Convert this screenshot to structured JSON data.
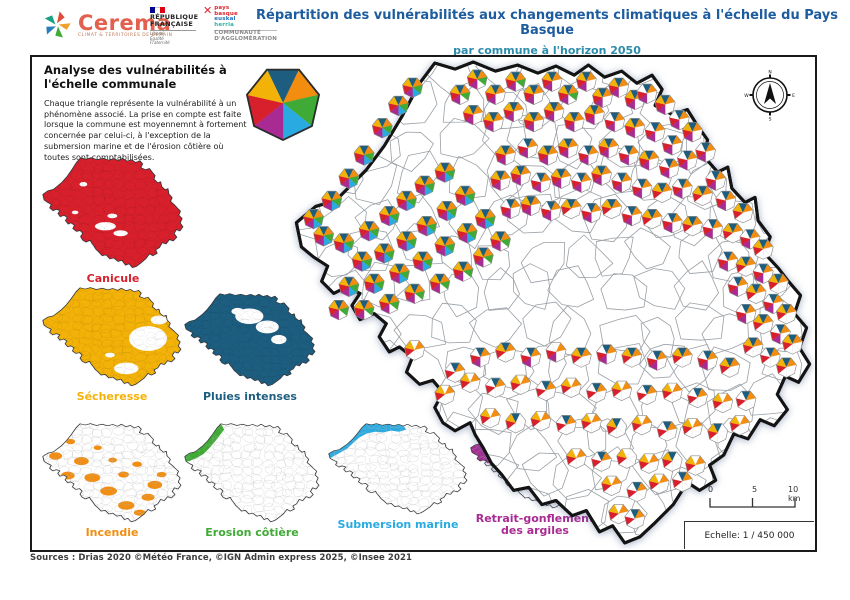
{
  "header": {
    "cerema": {
      "name": "Cerema",
      "tagline": "CLIMAT & TERRITOIRES DE DEMAIN"
    },
    "republique": {
      "line1": "RÉPUBLIQUE",
      "line2": "FRANÇAISE",
      "motto": "Liberté\nÉgalité\nFraternité"
    },
    "pays_basque": {
      "mark": "✕",
      "line1": "pays",
      "line2": "basque",
      "line3": "euskal",
      "line4": "herria",
      "sub": "COMMUNAUTÉ\nD'AGGLOMÉRATION"
    },
    "title": "Répartition des vulnérabilités aux changements climatiques à l'échelle du Pays Basque",
    "subtitle": "par commune à l'horizon 2050",
    "title_color": "#1d5c9e",
    "subtitle_color": "#2b8cab"
  },
  "panel": {
    "heading": "Analyse des vulnérabilités à l'échelle communale",
    "body": "Chaque triangle représente la vulnérabilité à un phénomène associé. La prise en compte est faite lorsque la commune est moyennemnt à fortement concernée par celui-ci, à l'exception de la submersion marine et de l'érosion côtière où toutes sont comptabilisées."
  },
  "phenomena": [
    {
      "id": "canicule",
      "label": "Canicule",
      "color": "#d8202c"
    },
    {
      "id": "secheresse",
      "label": "Sécheresse",
      "color": "#f3b208"
    },
    {
      "id": "pluies",
      "label": "Pluies intenses",
      "color": "#1d5e80"
    },
    {
      "id": "incendie",
      "label": "Incendie",
      "color": "#f28d0f"
    },
    {
      "id": "erosion",
      "label": "Erosion côtière",
      "color": "#3faa35"
    },
    {
      "id": "submersion",
      "label": "Submersion marine",
      "color": "#29abe2"
    },
    {
      "id": "retrait",
      "label": "Retrait-gonflement\ndes argiles",
      "color": "#a82a92"
    }
  ],
  "wedge_order": [
    "pluies",
    "incendie",
    "erosion",
    "submersion",
    "retrait",
    "canicule",
    "secheresse"
  ],
  "compass": {
    "north": "N",
    "east": "E",
    "south": "S",
    "west": "W"
  },
  "scalebar": {
    "t0": "0",
    "t5": "5",
    "t10": "10 km",
    "echelle": "Echelle: 1 / 450 000"
  },
  "sources": "Sources : Drias 2020 ©Météo France, ©IGN Admin express 2025, ©Insee 2021",
  "map": {
    "pies": [
      [
        118,
        28,
        "1111111"
      ],
      [
        104,
        46,
        "1111111"
      ],
      [
        88,
        68,
        "1111111"
      ],
      [
        70,
        95,
        "1111111"
      ],
      [
        55,
        118,
        "1111111"
      ],
      [
        38,
        140,
        "1111111"
      ],
      [
        20,
        158,
        "1111111"
      ],
      [
        30,
        175,
        "1111111"
      ],
      [
        50,
        182,
        "1111111"
      ],
      [
        75,
        170,
        "1111111"
      ],
      [
        95,
        155,
        "1111111"
      ],
      [
        112,
        140,
        "1111111"
      ],
      [
        130,
        125,
        "1111111"
      ],
      [
        150,
        112,
        "1111111"
      ],
      [
        68,
        200,
        "1111111"
      ],
      [
        90,
        192,
        "1111111"
      ],
      [
        112,
        180,
        "1111111"
      ],
      [
        132,
        165,
        "1111111"
      ],
      [
        152,
        150,
        "1111111"
      ],
      [
        170,
        135,
        "1111111"
      ],
      [
        55,
        225,
        "1111111"
      ],
      [
        80,
        222,
        "1111111"
      ],
      [
        105,
        212,
        "1111111"
      ],
      [
        128,
        200,
        "1111111"
      ],
      [
        150,
        185,
        "1111111"
      ],
      [
        172,
        172,
        "1111111"
      ],
      [
        190,
        158,
        "1111111"
      ],
      [
        45,
        248,
        "1110111"
      ],
      [
        70,
        248,
        "1110111"
      ],
      [
        95,
        242,
        "1110111"
      ],
      [
        120,
        232,
        "1110111"
      ],
      [
        145,
        222,
        "1110111"
      ],
      [
        168,
        210,
        "1110111"
      ],
      [
        188,
        196,
        "1110111"
      ],
      [
        205,
        180,
        "1110111"
      ],
      [
        165,
        35,
        "1110111"
      ],
      [
        182,
        20,
        "1110111"
      ],
      [
        200,
        35,
        "1100111"
      ],
      [
        220,
        22,
        "1110111"
      ],
      [
        238,
        35,
        "1100111"
      ],
      [
        256,
        22,
        "1100111"
      ],
      [
        272,
        35,
        "1110111"
      ],
      [
        290,
        22,
        "1100111"
      ],
      [
        306,
        38,
        "1100111"
      ],
      [
        322,
        28,
        "1100111"
      ],
      [
        338,
        40,
        "1100111"
      ],
      [
        350,
        34,
        "1100110"
      ],
      [
        368,
        45,
        "1100111"
      ],
      [
        382,
        60,
        "1100110"
      ],
      [
        395,
        72,
        "1100111"
      ],
      [
        178,
        55,
        "1100111"
      ],
      [
        198,
        62,
        "1100111"
      ],
      [
        218,
        52,
        "1100111"
      ],
      [
        238,
        62,
        "1100111"
      ],
      [
        258,
        52,
        "1100111"
      ],
      [
        278,
        62,
        "1100111"
      ],
      [
        298,
        55,
        "1100111"
      ],
      [
        318,
        62,
        "1100110"
      ],
      [
        338,
        68,
        "1100111"
      ],
      [
        358,
        72,
        "1100110"
      ],
      [
        375,
        85,
        "1100110"
      ],
      [
        210,
        95,
        "1100111"
      ],
      [
        232,
        88,
        "1100110"
      ],
      [
        252,
        95,
        "1100111"
      ],
      [
        272,
        88,
        "1100111"
      ],
      [
        292,
        95,
        "1100110"
      ],
      [
        312,
        88,
        "1100111"
      ],
      [
        332,
        95,
        "1100110"
      ],
      [
        352,
        100,
        "1100111"
      ],
      [
        372,
        108,
        "1100110"
      ],
      [
        390,
        100,
        "1100110"
      ],
      [
        408,
        92,
        "1100110"
      ],
      [
        418,
        120,
        "1100110"
      ],
      [
        205,
        120,
        "1100111"
      ],
      [
        225,
        115,
        "1100111"
      ],
      [
        245,
        122,
        "1100110"
      ],
      [
        265,
        118,
        "1100111"
      ],
      [
        285,
        122,
        "1100110"
      ],
      [
        305,
        115,
        "1100111"
      ],
      [
        325,
        122,
        "1100110"
      ],
      [
        345,
        128,
        "1100110"
      ],
      [
        365,
        132,
        "1100011"
      ],
      [
        385,
        128,
        "1100110"
      ],
      [
        405,
        135,
        "1100011"
      ],
      [
        428,
        140,
        "1100110"
      ],
      [
        445,
        152,
        "1100011"
      ],
      [
        215,
        148,
        "1100110"
      ],
      [
        235,
        145,
        "1100111"
      ],
      [
        255,
        150,
        "1100110"
      ],
      [
        275,
        148,
        "1100011"
      ],
      [
        295,
        152,
        "1100110"
      ],
      [
        315,
        148,
        "1100011"
      ],
      [
        335,
        155,
        "1100110"
      ],
      [
        355,
        158,
        "1100011"
      ],
      [
        375,
        162,
        "1100110"
      ],
      [
        395,
        165,
        "1100011"
      ],
      [
        415,
        168,
        "1100110"
      ],
      [
        435,
        172,
        "1100011"
      ],
      [
        452,
        178,
        "1100110"
      ],
      [
        465,
        188,
        "1100011"
      ],
      [
        430,
        200,
        "1100110"
      ],
      [
        448,
        205,
        "1100011"
      ],
      [
        465,
        212,
        "1100110"
      ],
      [
        480,
        222,
        "1100011"
      ],
      [
        440,
        225,
        "1100110"
      ],
      [
        458,
        232,
        "1100011"
      ],
      [
        475,
        242,
        "1100110"
      ],
      [
        488,
        252,
        "1100011"
      ],
      [
        448,
        252,
        "1100110"
      ],
      [
        465,
        262,
        "1100011"
      ],
      [
        482,
        272,
        "1100110"
      ],
      [
        494,
        282,
        "1100011"
      ],
      [
        455,
        285,
        "1100011"
      ],
      [
        472,
        295,
        "1100010"
      ],
      [
        488,
        305,
        "1100011"
      ],
      [
        120,
        288,
        "0100011"
      ],
      [
        150,
        332,
        "0100011"
      ],
      [
        160,
        310,
        "1100010"
      ],
      [
        185,
        295,
        "1100110"
      ],
      [
        210,
        290,
        "1100011"
      ],
      [
        235,
        295,
        "1100110"
      ],
      [
        260,
        290,
        "0100110"
      ],
      [
        285,
        295,
        "1100011"
      ],
      [
        310,
        292,
        "1100110"
      ],
      [
        335,
        295,
        "1100011"
      ],
      [
        360,
        298,
        "1100110"
      ],
      [
        385,
        295,
        "1100011"
      ],
      [
        410,
        298,
        "1100110"
      ],
      [
        432,
        305,
        "1100011"
      ],
      [
        175,
        320,
        "0100011"
      ],
      [
        200,
        325,
        "1100010"
      ],
      [
        225,
        322,
        "0100011"
      ],
      [
        250,
        328,
        "1100010"
      ],
      [
        275,
        325,
        "0100011"
      ],
      [
        300,
        330,
        "1100010"
      ],
      [
        325,
        328,
        "0100011"
      ],
      [
        350,
        332,
        "1100010"
      ],
      [
        375,
        330,
        "0100011"
      ],
      [
        400,
        335,
        "1100010"
      ],
      [
        425,
        340,
        "0100011"
      ],
      [
        448,
        338,
        "1100010"
      ],
      [
        195,
        355,
        "0100011"
      ],
      [
        220,
        360,
        "1000011"
      ],
      [
        245,
        358,
        "0100011"
      ],
      [
        270,
        362,
        "1100010"
      ],
      [
        295,
        360,
        "0100011"
      ],
      [
        320,
        365,
        "1000011"
      ],
      [
        345,
        362,
        "0100011"
      ],
      [
        370,
        368,
        "1100010"
      ],
      [
        395,
        365,
        "0100011"
      ],
      [
        420,
        370,
        "1000011"
      ],
      [
        442,
        362,
        "0100011"
      ],
      [
        280,
        395,
        "0100011"
      ],
      [
        305,
        398,
        "1100010"
      ],
      [
        330,
        395,
        "0000011"
      ],
      [
        352,
        400,
        "0100011"
      ],
      [
        375,
        398,
        "1000011"
      ],
      [
        398,
        402,
        "0100011"
      ],
      [
        315,
        422,
        "0100011"
      ],
      [
        340,
        428,
        "1100010"
      ],
      [
        362,
        420,
        "0100011"
      ],
      [
        385,
        418,
        "1100010"
      ],
      [
        322,
        450,
        "0100011"
      ],
      [
        338,
        455,
        "1100010"
      ]
    ]
  }
}
